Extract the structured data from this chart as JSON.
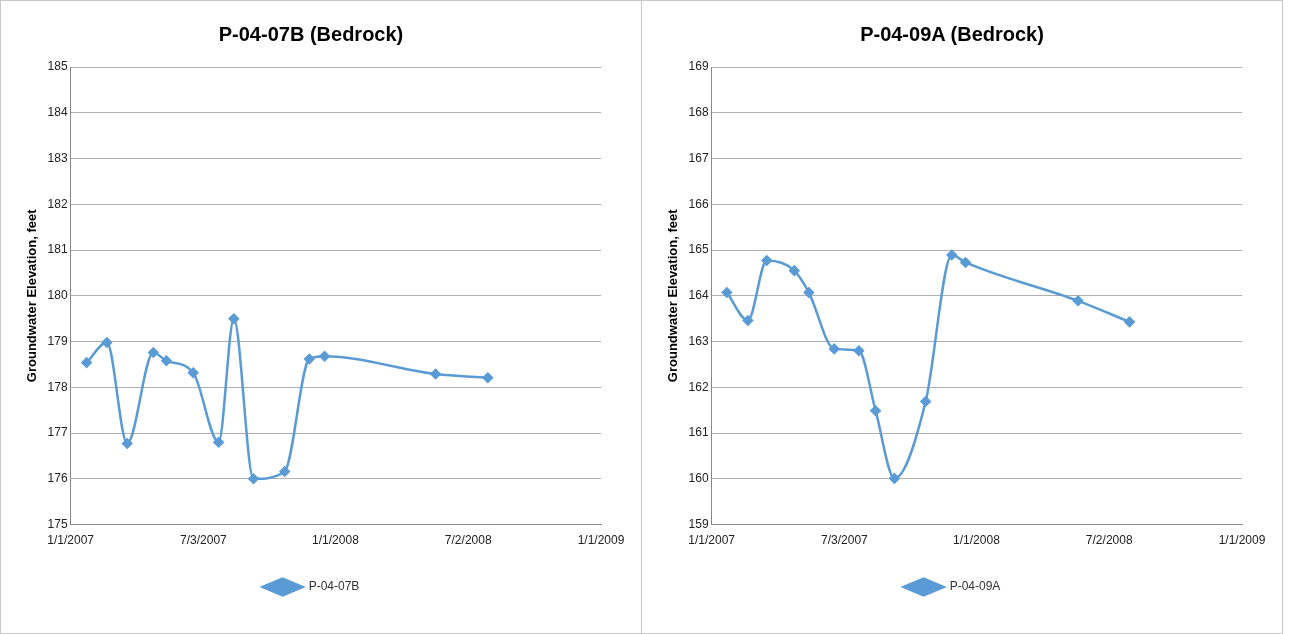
{
  "chart_data": [
    {
      "type": "line",
      "title": "P-04-07B (Bedrock)",
      "ylabel": "Groundwater Elevation, feet",
      "x": [
        "2007-01-23",
        "2007-02-20",
        "2007-03-20",
        "2007-04-25",
        "2007-05-13",
        "2007-06-19",
        "2007-07-24",
        "2007-08-14",
        "2007-09-10",
        "2007-10-23",
        "2007-11-26",
        "2007-12-17",
        "2008-05-18",
        "2008-07-29"
      ],
      "series": [
        {
          "name": "P-04-07B",
          "color": "#5b9bd5",
          "values": [
            178.54,
            178.98,
            176.77,
            178.76,
            178.58,
            178.32,
            176.8,
            179.5,
            176.0,
            176.16,
            178.62,
            178.68,
            178.29,
            178.21
          ]
        }
      ],
      "xlim": [
        "2007-01-01",
        "2009-01-01"
      ],
      "xticks": [
        {
          "value": "2007-01-01",
          "label": "1/1/2007"
        },
        {
          "value": "2007-07-03",
          "label": "7/3/2007"
        },
        {
          "value": "2008-01-01",
          "label": "1/1/2008"
        },
        {
          "value": "2008-07-02",
          "label": "7/2/2008"
        },
        {
          "value": "2009-01-01",
          "label": "1/1/2009"
        }
      ],
      "ylim": [
        175,
        185
      ],
      "yticks": [
        175,
        176,
        177,
        178,
        179,
        180,
        181,
        182,
        183,
        184,
        185
      ],
      "grid": "y",
      "legend": "bottom",
      "marker": "diamond",
      "line_style": "solid"
    },
    {
      "type": "line",
      "title": "P-04-09A (Bedrock)",
      "ylabel": "Groundwater Elevation, feet",
      "x": [
        "2007-01-22",
        "2007-02-20",
        "2007-03-18",
        "2007-04-25",
        "2007-05-15",
        "2007-06-19",
        "2007-07-23",
        "2007-08-15",
        "2007-09-10",
        "2007-10-23",
        "2007-11-28",
        "2007-12-17",
        "2008-05-20",
        "2008-07-30"
      ],
      "series": [
        {
          "name": "P-04-09A",
          "color": "#5b9bd5",
          "values": [
            164.07,
            163.46,
            164.77,
            164.55,
            164.07,
            162.84,
            162.8,
            161.49,
            160.01,
            161.69,
            164.89,
            164.73,
            163.89,
            163.43
          ]
        }
      ],
      "xlim": [
        "2007-01-01",
        "2009-01-01"
      ],
      "xticks": [
        {
          "value": "2007-01-01",
          "label": "1/1/2007"
        },
        {
          "value": "2007-07-03",
          "label": "7/3/2007"
        },
        {
          "value": "2008-01-01",
          "label": "1/1/2008"
        },
        {
          "value": "2008-07-02",
          "label": "7/2/2008"
        },
        {
          "value": "2009-01-01",
          "label": "1/1/2009"
        }
      ],
      "ylim": [
        159,
        169
      ],
      "yticks": [
        159,
        160,
        161,
        162,
        163,
        164,
        165,
        166,
        167,
        168,
        169
      ],
      "grid": "y",
      "legend": "bottom",
      "marker": "diamond",
      "line_style": "solid"
    }
  ]
}
